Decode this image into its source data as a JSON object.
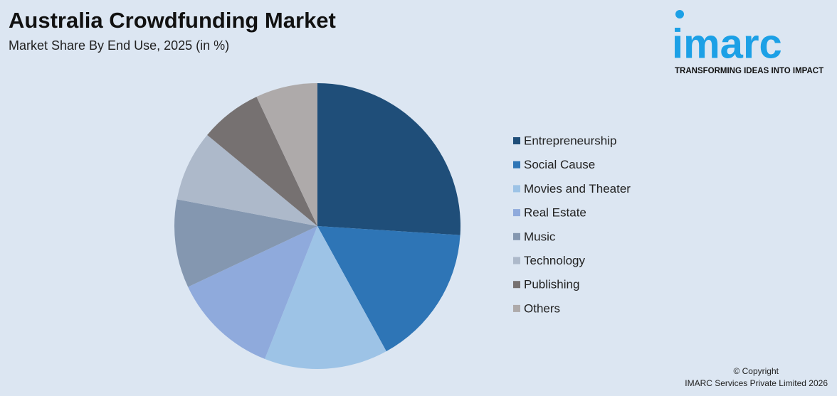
{
  "chart_data": {
    "type": "pie",
    "title": "Australia Crowdfunding Market",
    "subtitle": "Market Share By End Use, 2025 (in %)",
    "categories": [
      "Entrepreneurship",
      "Social Cause",
      "Movies and Theater",
      "Real Estate",
      "Music",
      "Technology",
      "Publishing",
      "Others"
    ],
    "values": [
      26,
      16,
      14,
      12,
      10,
      8,
      7,
      7
    ],
    "colors": [
      "#1f4e79",
      "#2e75b6",
      "#9dc3e6",
      "#8faadc",
      "#8497b0",
      "#adb9ca",
      "#767171",
      "#aeaaaa"
    ],
    "legend": "right"
  },
  "logo": {
    "name": "imarc",
    "tagline": "TRANSFORMING IDEAS INTO IMPACT"
  },
  "footer": {
    "copyright": "© Copyright",
    "company": "IMARC Services Private Limited 2026"
  }
}
